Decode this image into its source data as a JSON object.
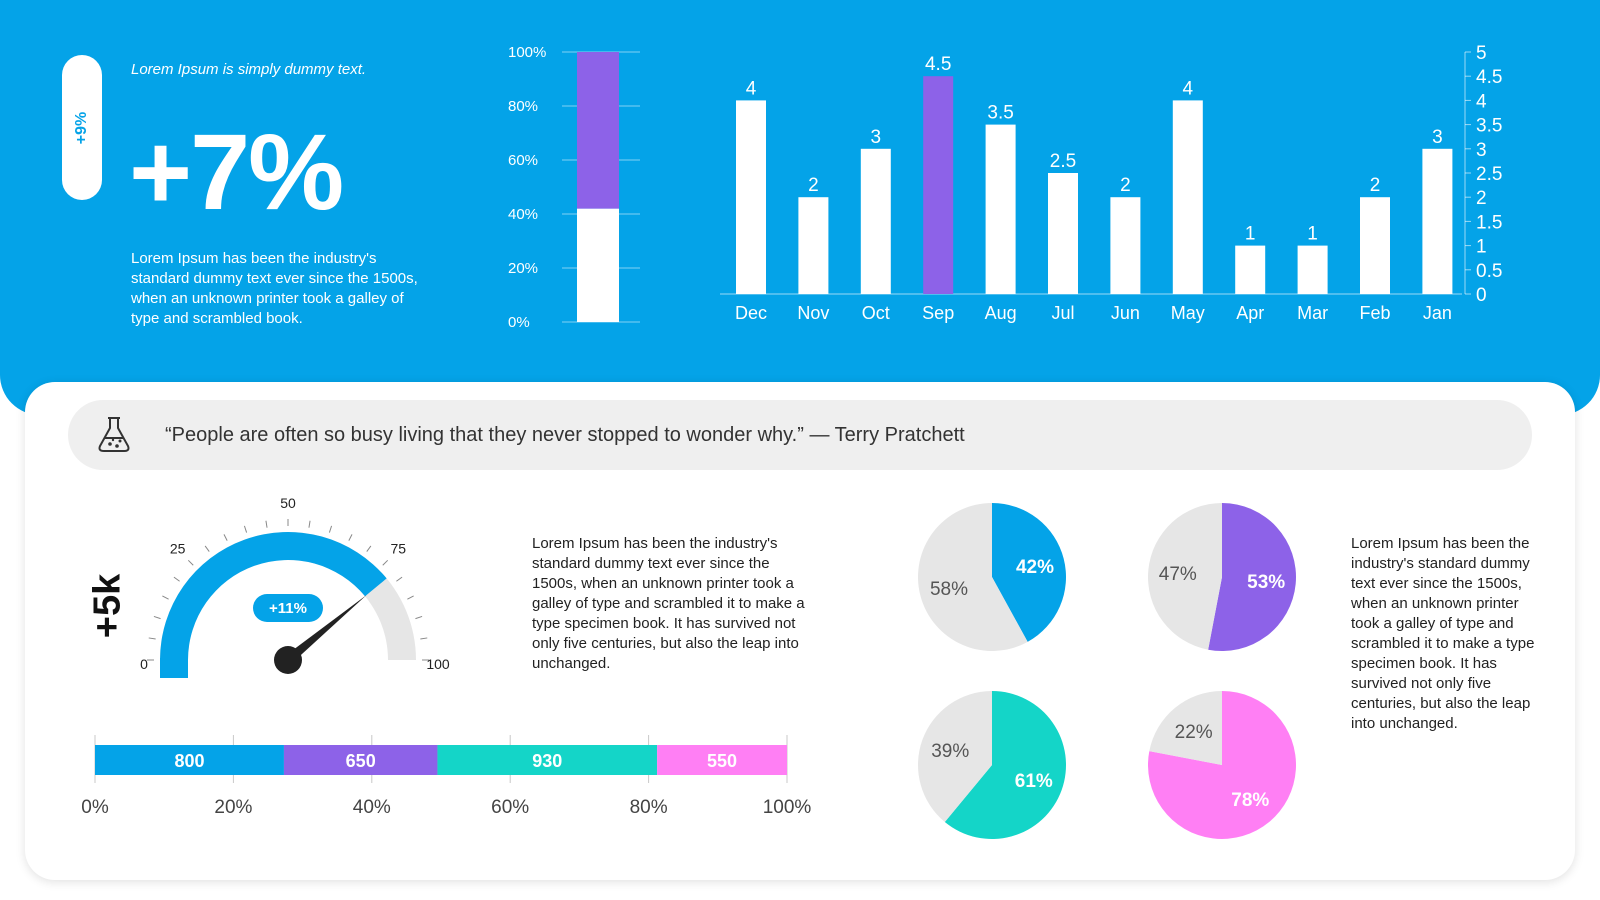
{
  "colors": {
    "blue": "#04a3e8",
    "purple": "#8d62e8",
    "teal": "#14d5c8",
    "pink": "#ff7ff4",
    "grey": "#e6e6e6",
    "white": "#ffffff"
  },
  "hero": {
    "badge": "+9%",
    "subtitle": "Lorem Ipsum is simply dummy text.",
    "big_number": "+7%",
    "body": "Lorem Ipsum has been the industry's standard dummy text ever since the 1500s, when an unknown printer took a galley of type and scrambled book."
  },
  "quote": {
    "icon": "flask-icon",
    "text": "“People are often so busy living that they never stopped to wonder why.” — Terry Pratchett"
  },
  "side_label": "+5k",
  "paragraph_middle": "Lorem Ipsum has been the industry's standard dummy text ever since the 1500s, when an unknown printer took a galley of type and scrambled it to make a type specimen book. It has survived not only five centuries, but also the leap into unchanged.",
  "paragraph_right": "Lorem Ipsum has been the industry's standard dummy text ever since the 1500s, when an unknown printer took a galley of type and scrambled it to make a type specimen book. It has survived not only five centuries, but also the leap into unchanged.",
  "chart_data": [
    {
      "type": "bar",
      "stacked": true,
      "ylim": [
        0,
        100
      ],
      "y_ticks": [
        "0%",
        "20%",
        "40%",
        "60%",
        "80%",
        "100%"
      ],
      "series": [
        {
          "values": [
            42
          ],
          "color": "#ffffff"
        },
        {
          "values": [
            58
          ],
          "color": "#8d62e8"
        }
      ]
    },
    {
      "type": "bar",
      "categories": [
        "Dec",
        "Nov",
        "Oct",
        "Sep",
        "Aug",
        "Jul",
        "Jun",
        "May",
        "Apr",
        "Mar",
        "Feb",
        "Jan"
      ],
      "values": [
        4,
        2,
        3,
        4.5,
        3.5,
        2.5,
        2,
        4,
        1,
        1,
        2,
        3
      ],
      "labels": [
        "4",
        "2",
        "3",
        "4.5",
        "3.5",
        "2.5",
        "2",
        "4",
        "1",
        "1",
        "2",
        "3"
      ],
      "highlight": "Sep",
      "ylim": [
        0,
        5
      ],
      "y_ticks": [
        "0",
        "0.5",
        "1",
        "1.5",
        "2",
        "2.5",
        "3",
        "3.5",
        "4",
        "4.5",
        "5"
      ],
      "y_axis_side": "right"
    },
    {
      "type": "gauge",
      "value": 78,
      "range": [
        0,
        100
      ],
      "ticks": [
        "0",
        "25",
        "50",
        "75",
        "100"
      ],
      "badge": "+11%"
    },
    {
      "type": "bar",
      "orientation": "horizontal",
      "stacked": true,
      "series": [
        {
          "values": [
            800
          ],
          "label": "800",
          "color": "#04a3e8"
        },
        {
          "values": [
            650
          ],
          "label": "650",
          "color": "#8d62e8"
        },
        {
          "values": [
            930
          ],
          "label": "930",
          "color": "#14d5c8"
        },
        {
          "values": [
            550
          ],
          "label": "550",
          "color": "#ff7ff4"
        }
      ],
      "x_ticks": [
        "0%",
        "20%",
        "40%",
        "60%",
        "80%",
        "100%"
      ]
    },
    {
      "type": "pie",
      "slices": [
        {
          "value": 42,
          "label": "42%",
          "color": "#04a3e8"
        },
        {
          "value": 58,
          "label": "58%",
          "color": "#e6e6e6"
        }
      ]
    },
    {
      "type": "pie",
      "slices": [
        {
          "value": 53,
          "label": "53%",
          "color": "#8d62e8"
        },
        {
          "value": 47,
          "label": "47%",
          "color": "#e6e6e6"
        }
      ]
    },
    {
      "type": "pie",
      "slices": [
        {
          "value": 61,
          "label": "61%",
          "color": "#14d5c8"
        },
        {
          "value": 39,
          "label": "39%",
          "color": "#e6e6e6"
        }
      ]
    },
    {
      "type": "pie",
      "slices": [
        {
          "value": 78,
          "label": "78%",
          "color": "#ff7ff4"
        },
        {
          "value": 22,
          "label": "22%",
          "color": "#e6e6e6"
        }
      ]
    }
  ]
}
